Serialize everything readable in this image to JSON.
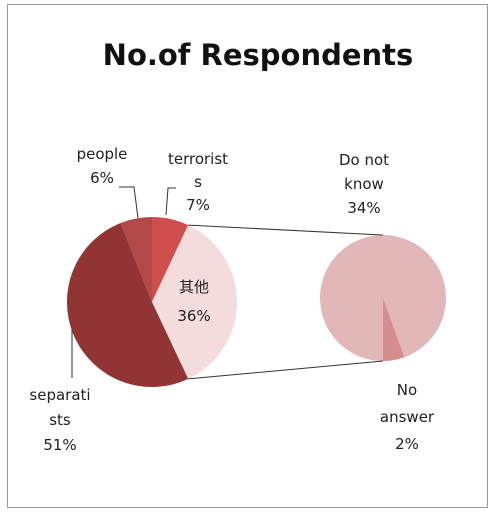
{
  "chart_data": {
    "type": "pie",
    "title": "No.of Respondents",
    "subtype": "pie-of-pie",
    "main_pie": {
      "slices": [
        {
          "label": "terrorists",
          "value": 7,
          "color": "#cf4f4f",
          "text_lines": [
            "terrorist",
            "s",
            "7%"
          ]
        },
        {
          "label": "其他",
          "value": 36,
          "color": "#f4dcdc",
          "text_lines": [
            "其他",
            "36%"
          ]
        },
        {
          "label": "separatists",
          "value": 51,
          "color": "#923434",
          "text_lines": [
            "separati",
            "sts",
            "51%"
          ]
        },
        {
          "label": "people",
          "value": 6,
          "color": "#b34848",
          "text_lines": [
            "people",
            "6%"
          ]
        }
      ]
    },
    "secondary_pie": {
      "slices": [
        {
          "label": "Do not know",
          "value": 34,
          "color": "#e2b7b7",
          "text_lines": [
            "Do not",
            "know",
            "34%"
          ]
        },
        {
          "label": "No answer",
          "value": 2,
          "color": "#d48e8e",
          "text_lines": [
            "No",
            "answer",
            "2%"
          ]
        }
      ]
    }
  }
}
